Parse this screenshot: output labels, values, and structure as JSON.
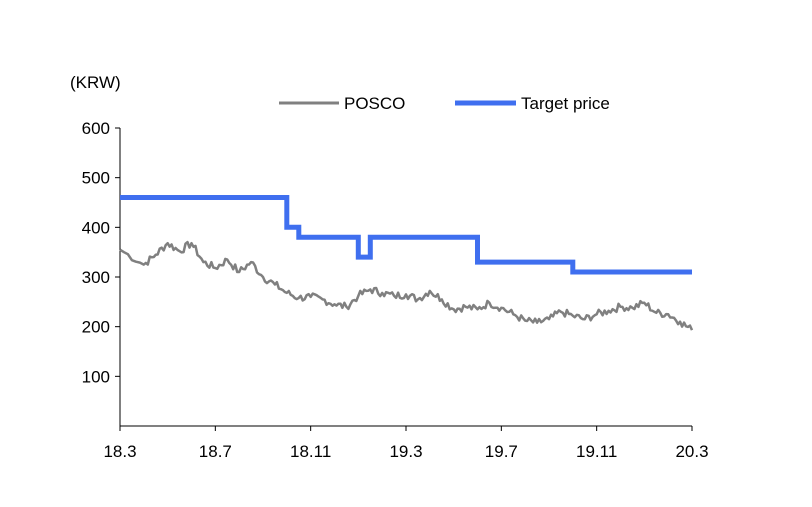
{
  "chart_data": {
    "type": "line",
    "title": "",
    "xlabel": "",
    "ylabel": "(KRW)",
    "ylim": [
      0,
      600
    ],
    "y_ticks": [
      100,
      200,
      300,
      400,
      500,
      600
    ],
    "y_tick_labels": [
      "100",
      "200",
      "300",
      "400",
      "500",
      "600"
    ],
    "x_range": [
      "2018-03",
      "2020-03"
    ],
    "x_ticks": [
      "18.3",
      "18.7",
      "18.11",
      "19.3",
      "19.7",
      "19.11",
      "20.3"
    ],
    "grid": false,
    "legend": "top",
    "colors": {
      "posco": "#808080",
      "target": "#3f6fef"
    },
    "series": [
      {
        "name": "POSCO",
        "kind": "line",
        "points": [
          [
            "18.3",
            355
          ],
          [
            "18.4",
            325
          ],
          [
            "18.4.5",
            345
          ],
          [
            "18.5",
            368
          ],
          [
            "18.5.5",
            352
          ],
          [
            "18.6",
            368
          ],
          [
            "18.6.5",
            330
          ],
          [
            "18.7",
            318
          ],
          [
            "18.7.5",
            335
          ],
          [
            "18.8",
            310
          ],
          [
            "18.8.5",
            330
          ],
          [
            "18.9",
            300
          ],
          [
            "18.9.5",
            285
          ],
          [
            "18.10",
            268
          ],
          [
            "18.10.5",
            258
          ],
          [
            "18.11",
            260
          ],
          [
            "18.11.5",
            255
          ],
          [
            "18.12",
            245
          ],
          [
            "18.12.5",
            240
          ],
          [
            "19.1",
            262
          ],
          [
            "19.1.5",
            275
          ],
          [
            "19.2",
            268
          ],
          [
            "19.2.5",
            262
          ],
          [
            "19.3",
            265
          ],
          [
            "19.3.5",
            255
          ],
          [
            "19.4",
            272
          ],
          [
            "19.4.5",
            255
          ],
          [
            "19.5",
            235
          ],
          [
            "19.5.5",
            240
          ],
          [
            "19.6",
            235
          ],
          [
            "19.6.5",
            248
          ],
          [
            "19.7",
            238
          ],
          [
            "19.7.5",
            225
          ],
          [
            "19.8",
            212
          ],
          [
            "19.8.5",
            208
          ],
          [
            "19.9",
            215
          ],
          [
            "19.9.5",
            230
          ],
          [
            "19.10",
            222
          ],
          [
            "19.10.5",
            215
          ],
          [
            "19.11",
            225
          ],
          [
            "19.11.5",
            232
          ],
          [
            "19.12",
            240
          ],
          [
            "19.12.5",
            238
          ],
          [
            "20.1",
            248
          ],
          [
            "20.1.5",
            228
          ],
          [
            "20.2",
            225
          ],
          [
            "20.2.5",
            210
          ],
          [
            "20.3",
            193
          ]
        ]
      },
      {
        "name": "Target price",
        "kind": "step",
        "points": [
          [
            "18.3",
            460
          ],
          [
            "18.10",
            400
          ],
          [
            "18.10.5",
            380
          ],
          [
            "19.1",
            340
          ],
          [
            "19.1.5",
            380
          ],
          [
            "19.6",
            330
          ],
          [
            "19.10",
            310
          ],
          [
            "20.3",
            310
          ]
        ]
      }
    ]
  }
}
